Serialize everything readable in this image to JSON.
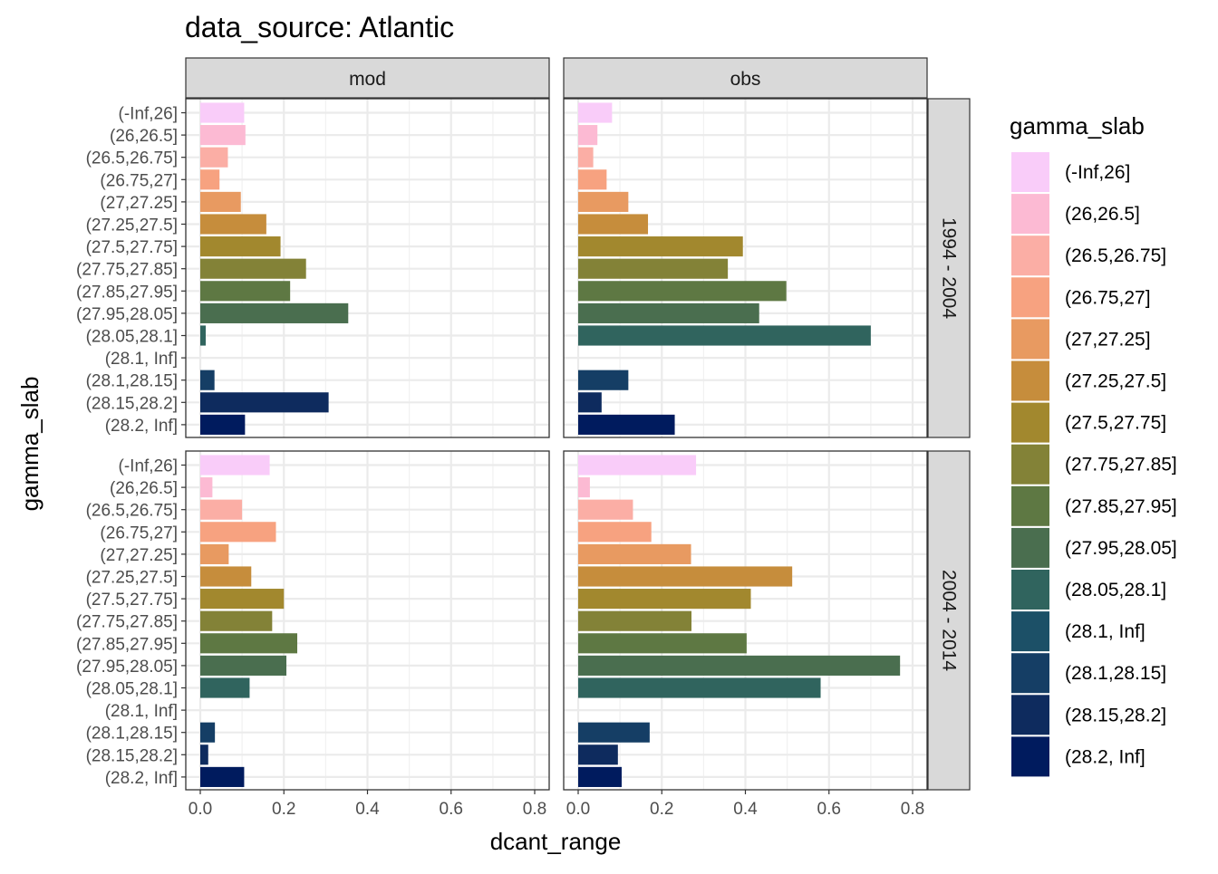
{
  "chart_data": {
    "type": "bar",
    "orientation": "horizontal",
    "title": "data_source: Atlantic",
    "xlabel": "dcant_range",
    "ylabel": "gamma_slab",
    "xlim": [
      0,
      0.8
    ],
    "x_ticks": [
      0.0,
      0.2,
      0.4,
      0.6,
      0.8
    ],
    "x_tick_labels": [
      "0.0",
      "0.2",
      "0.4",
      "0.6",
      "0.8"
    ],
    "grid": true,
    "facet_columns": [
      "mod",
      "obs"
    ],
    "facet_rows": [
      "1994 - 2004",
      "2004 - 2014"
    ],
    "categories": [
      "(-Inf,26]",
      "(26,26.5]",
      "(26.5,26.75]",
      "(26.75,27]",
      "(27,27.25]",
      "(27.25,27.5]",
      "(27.5,27.75]",
      "(27.75,27.85]",
      "(27.85,27.95]",
      "(27.95,28.05]",
      "(28.05,28.1]",
      "(28.1, Inf]",
      "(28.1,28.15]",
      "(28.15,28.2]",
      "(28.2, Inf]"
    ],
    "colors": [
      "#F9CCF9",
      "#FCBAD3",
      "#FBAEA5",
      "#F7A280",
      "#E89A61",
      "#C68D3C",
      "#A2882E",
      "#838237",
      "#5E7843",
      "#4A6E4F",
      "#30645E",
      "#1C5067",
      "#153E65",
      "#0E2B5E",
      "#001B5E"
    ],
    "panels": [
      {
        "col": "mod",
        "row": "1994 - 2004",
        "values": [
          0.105,
          0.108,
          0.066,
          0.046,
          0.097,
          0.158,
          0.192,
          0.253,
          0.215,
          0.354,
          0.013,
          null,
          0.034,
          0.307,
          0.107
        ]
      },
      {
        "col": "obs",
        "row": "1994 - 2004",
        "values": [
          0.081,
          0.046,
          0.036,
          0.068,
          0.12,
          0.167,
          0.394,
          0.358,
          0.498,
          0.433,
          0.7,
          null,
          0.12,
          0.056,
          0.231
        ]
      },
      {
        "col": "mod",
        "row": "2004 - 2014",
        "values": [
          0.166,
          0.029,
          0.1,
          0.181,
          0.068,
          0.122,
          0.2,
          0.172,
          0.232,
          0.206,
          0.118,
          null,
          0.035,
          0.019,
          0.105
        ]
      },
      {
        "col": "obs",
        "row": "2004 - 2014",
        "values": [
          0.282,
          0.028,
          0.131,
          0.175,
          0.27,
          0.512,
          0.413,
          0.271,
          0.403,
          0.77,
          0.58,
          null,
          0.171,
          0.095,
          0.104
        ]
      }
    ],
    "legend": {
      "title": "gamma_slab",
      "position": "right"
    }
  }
}
